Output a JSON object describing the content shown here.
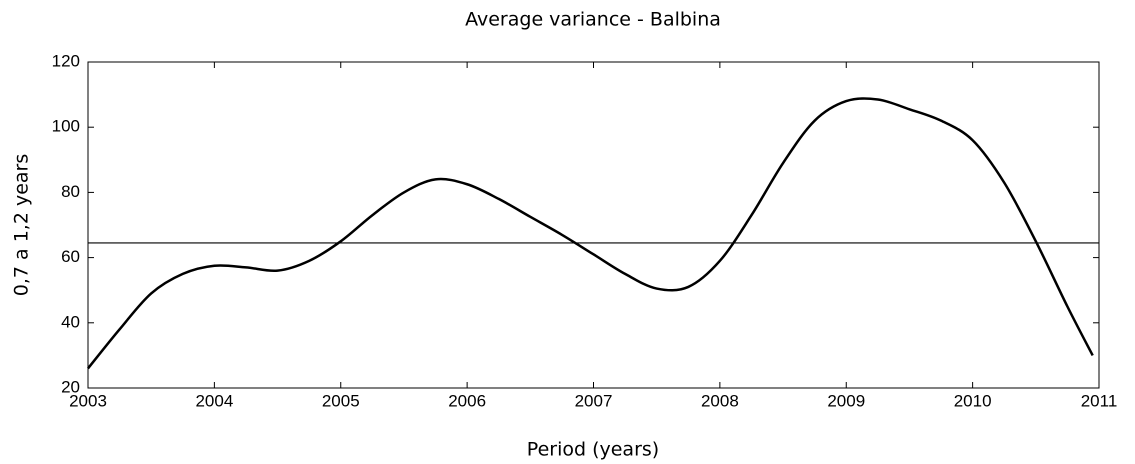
{
  "chart_data": {
    "type": "line",
    "title": "Average variance - Balbina",
    "x_label": "Period (years)",
    "y_label": "0,7 a 1,2  years",
    "x": [
      2003.0,
      2003.25,
      2003.5,
      2003.75,
      2004.0,
      2004.25,
      2004.5,
      2004.75,
      2005.0,
      2005.25,
      2005.5,
      2005.75,
      2006.0,
      2006.25,
      2006.5,
      2006.75,
      2007.0,
      2007.25,
      2007.5,
      2007.75,
      2008.0,
      2008.25,
      2008.5,
      2008.75,
      2009.0,
      2009.25,
      2009.5,
      2009.75,
      2010.0,
      2010.25,
      2010.5,
      2010.75,
      2010.95
    ],
    "series": [
      {
        "name": "Average variance",
        "color": "#000000",
        "values": [
          26,
          38,
          49,
          55,
          57.5,
          57,
          56,
          59,
          65,
          73,
          80,
          84,
          82.5,
          78,
          72.5,
          67,
          61,
          55,
          50.5,
          51,
          59,
          73,
          89,
          102,
          108,
          108.5,
          105.5,
          102,
          96,
          83,
          65,
          45,
          30
        ]
      }
    ],
    "reference_line": 64.5,
    "xlim": [
      2003,
      2011
    ],
    "ylim": [
      20,
      120
    ],
    "xticks": [
      2003,
      2004,
      2005,
      2006,
      2007,
      2008,
      2009,
      2010,
      2011
    ],
    "yticks": [
      20,
      40,
      60,
      80,
      100,
      120
    ],
    "grid": false
  }
}
